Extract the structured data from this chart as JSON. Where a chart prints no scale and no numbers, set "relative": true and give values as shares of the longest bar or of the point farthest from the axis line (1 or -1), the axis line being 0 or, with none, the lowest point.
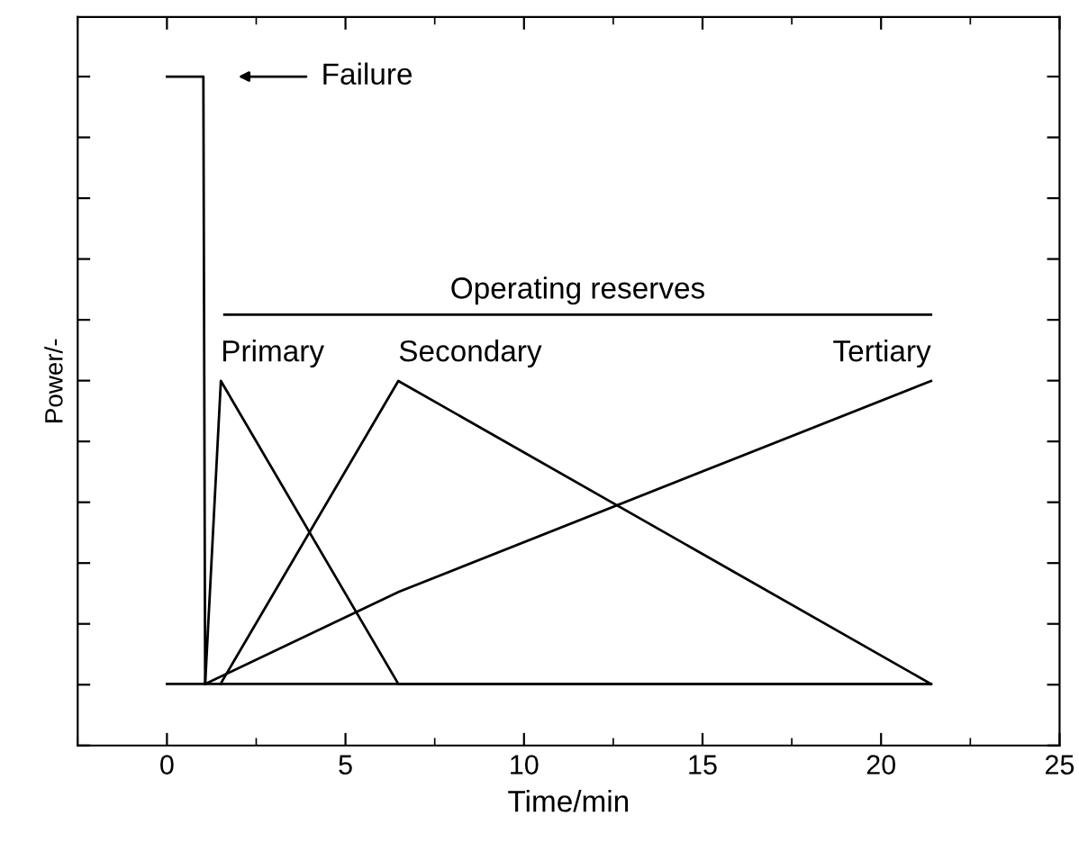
{
  "chart_data": {
    "type": "line",
    "relative": true,
    "xlabel": "Time/min",
    "ylabel": "Power/-",
    "xlim": [
      -2.5,
      25
    ],
    "xticks": [
      0,
      5,
      10,
      15,
      20,
      25
    ],
    "grid": false,
    "legend": false,
    "marker": "none",
    "line_style": "solid",
    "series": [
      {
        "color": "#000000",
        "x": [
          0,
          1.02,
          1.07
        ],
        "values": [
          1,
          1,
          0.092
        ]
      },
      {
        "color": "#000000",
        "x": [
          0,
          21.4
        ],
        "values": [
          0.092,
          0.092
        ]
      },
      {
        "name": "Primary",
        "color": "#000000",
        "x": [
          1.07,
          1.51,
          6.48,
          21.4
        ],
        "values": [
          0.092,
          0.545,
          0.092,
          0.092
        ]
      },
      {
        "name": "Secondary",
        "color": "#000000",
        "x": [
          1.5,
          6.48,
          21.4
        ],
        "values": [
          0.092,
          0.545,
          0.092
        ]
      },
      {
        "name": "Tertiary",
        "color": "#000000",
        "x": [
          1.07,
          6.5,
          21.4
        ],
        "values": [
          0.092,
          0.23,
          0.545
        ]
      }
    ],
    "ref_lines": [
      {
        "axis": "y",
        "value": 0.644,
        "label": "Operating reserves"
      }
    ],
    "annotations": [
      "Failure"
    ]
  }
}
